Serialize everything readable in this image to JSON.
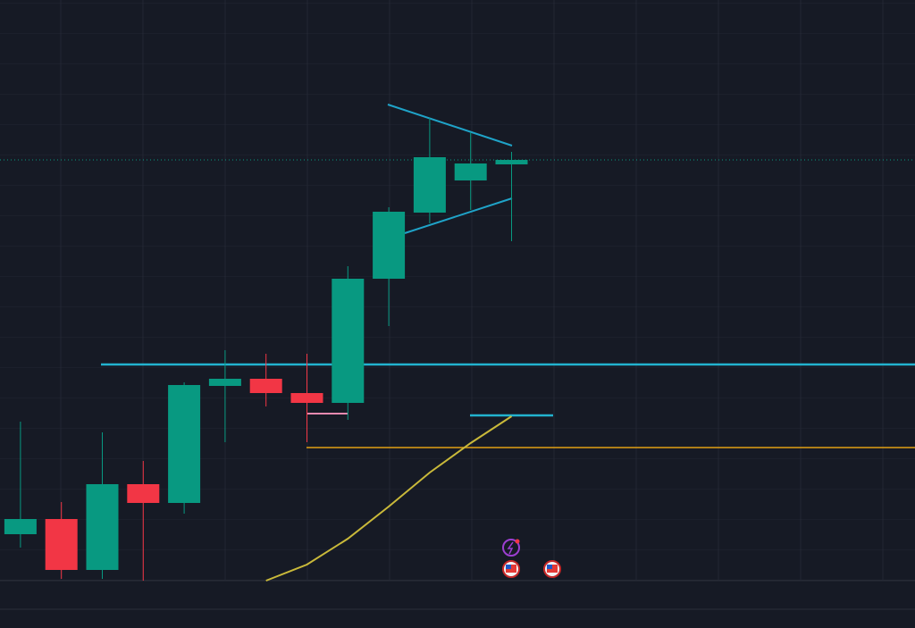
{
  "chart_data": {
    "type": "candlestick",
    "categories": [
      null,
      null,
      null,
      null,
      null,
      null,
      null,
      null,
      null,
      null,
      null,
      null,
      null
    ],
    "series": [
      {
        "name": "open",
        "values": [
          52,
          69,
          12,
          108,
          87,
          218,
          226,
          210,
          199,
          338,
          412,
          448,
          466
        ]
      },
      {
        "name": "high",
        "values": [
          178,
          88,
          166,
          134,
          222,
          258,
          254,
          254,
          352,
          418,
          518,
          502,
          480
        ]
      },
      {
        "name": "low",
        "values": [
          37,
          2,
          2,
          0,
          75,
          155,
          195,
          155,
          180,
          285,
          400,
          415,
          380
        ]
      },
      {
        "name": "close",
        "values": [
          69,
          12,
          108,
          87,
          219,
          226,
          210,
          199,
          338,
          413,
          474,
          467,
          471
        ]
      }
    ],
    "moving_average": {
      "color": "#c9b93a",
      "values": [
        null,
        null,
        null,
        null,
        null,
        null,
        0,
        18,
        47,
        83,
        121,
        154,
        184
      ]
    },
    "up_color": "#089981",
    "down_color": "#f23645",
    "ylim": [
      0,
      650
    ]
  }
}
